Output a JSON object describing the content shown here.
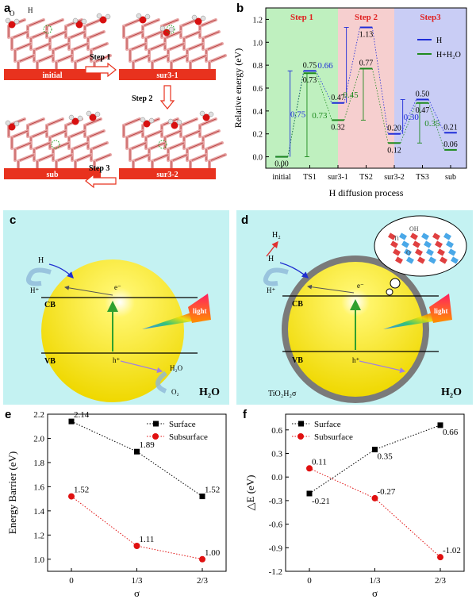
{
  "figure": {
    "panel_labels": {
      "a": "a",
      "b": "b",
      "c": "c",
      "d": "d",
      "e": "e",
      "f": "f"
    }
  },
  "panel_a": {
    "states": [
      "initial",
      "sur3-1",
      "sur3-2",
      "sub"
    ],
    "steps": [
      "Step 1",
      "Step 2",
      "Step 3"
    ],
    "atom_labels": [
      "O",
      "H"
    ],
    "colors": {
      "slab": "#e8a8a8",
      "slab_edge": "#b03030",
      "label_bar": "#e8321e",
      "arrow": "#e8321e",
      "oxygen": "#d81010",
      "hydrogen": "#e0e0e0"
    }
  },
  "panel_c": {
    "labels": {
      "h": "H",
      "hplus": "H⁺",
      "eminus": "e⁻",
      "cb": "CB",
      "vb": "VB",
      "hplus_hole": "h⁺",
      "h2o_small": "H₂O",
      "o2": "O₂",
      "light": "light",
      "h2o": "H₂O"
    },
    "colors": {
      "background": "#c4f2f2",
      "sphere": "#f2e400",
      "arrow_green": "#2fa02f"
    }
  },
  "panel_d": {
    "labels": {
      "h2": "H₂",
      "h": "H",
      "hplus": "H⁺",
      "eminus": "e⁻",
      "cb": "CB",
      "vb": "VB",
      "hplus_hole": "h⁺",
      "material": "TiO₂H₂σ",
      "light": "light",
      "h2o": "H₂O",
      "ti": "Ti",
      "oh": "OH",
      "o": "O"
    },
    "colors": {
      "background": "#c4f2f2",
      "shell": "#7a7a7a",
      "sphere": "#f2e400"
    }
  },
  "chart_data": [
    {
      "id": "b",
      "type": "line",
      "ylabel": "Relative energy (eV)",
      "xlabel": "H diffusion process",
      "categories": [
        "initial",
        "TS1",
        "sur3-1",
        "TS2",
        "sur3-2",
        "TS3",
        "sub"
      ],
      "ylim": [
        -0.1,
        1.3
      ],
      "yticks": [
        "0.0",
        "0.2",
        "0.4",
        "0.6",
        "0.8",
        "1.0",
        "1.2"
      ],
      "step_regions": [
        {
          "name": "Step 1",
          "from": 0,
          "to": 2,
          "color": "#bff0bf"
        },
        {
          "name": "Step 2",
          "from": 2,
          "to": 4,
          "color": "#f6cfcf"
        },
        {
          "name": "Step3",
          "from": 4,
          "to": 6,
          "color": "#c9cdf5"
        }
      ],
      "series": [
        {
          "name": "H",
          "color": "#1e2cd8",
          "values": [
            0.0,
            0.75,
            0.47,
            1.13,
            0.2,
            0.5,
            0.21
          ]
        },
        {
          "name": "H+H₂O",
          "color": "#1e8a1e",
          "values": [
            0.0,
            0.73,
            0.32,
            0.77,
            0.12,
            0.47,
            0.06
          ]
        }
      ],
      "level_labels": [
        "0.00",
        "0.75",
        "0.73",
        "0.47",
        "0.32",
        "1.13",
        "0.77",
        "0.20",
        "0.12",
        "0.50",
        "0.47",
        "0.21",
        "0.06"
      ],
      "barriers": {
        "H": [
          "0.75",
          "0.66",
          "0.30"
        ],
        "H+H₂O": [
          "0.73",
          "0.45",
          "0.35"
        ]
      }
    },
    {
      "id": "e",
      "type": "line",
      "ylabel": "Energy Barrier (eV)",
      "xlabel": "σ",
      "categories": [
        "0",
        "1/3",
        "2/3"
      ],
      "ylim": [
        0.9,
        2.2
      ],
      "yticks": [
        "1.0",
        "1.2",
        "1.4",
        "1.6",
        "1.8",
        "2.0",
        "2.2"
      ],
      "series": [
        {
          "name": "Surface",
          "color": "#000000",
          "values": [
            2.14,
            1.89,
            1.52
          ],
          "labels": [
            "2.14",
            "1.89",
            "1.52"
          ]
        },
        {
          "name": "Subsurface",
          "color": "#e01010",
          "values": [
            1.52,
            1.11,
            1.0
          ],
          "labels": [
            "1.52",
            "1.11",
            "1.00"
          ]
        }
      ],
      "legend": "top-right"
    },
    {
      "id": "f",
      "type": "line",
      "ylabel": "△E (eV)",
      "xlabel": "σ",
      "categories": [
        "0",
        "1/3",
        "2/3"
      ],
      "ylim": [
        -1.2,
        0.8
      ],
      "yticks": [
        "-1.2",
        "-0.9",
        "-0.6",
        "-0.3",
        "0.0",
        "0.3",
        "0.6"
      ],
      "series": [
        {
          "name": "Surface",
          "color": "#000000",
          "values": [
            -0.21,
            0.35,
            0.66
          ],
          "labels": [
            "-0.21",
            "0.35",
            "0.66"
          ]
        },
        {
          "name": "Subsurface",
          "color": "#e01010",
          "values": [
            0.11,
            -0.27,
            -1.02
          ],
          "labels": [
            "0.11",
            "-0.27",
            "-1.02"
          ]
        }
      ],
      "legend": "top-left"
    }
  ]
}
